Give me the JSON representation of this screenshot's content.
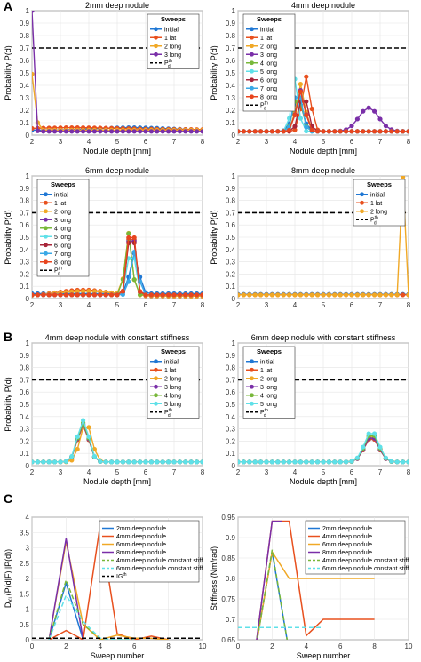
{
  "colors": {
    "initial": "#1f77d4",
    "lat1": "#e8501e",
    "long2": "#f0a826",
    "long3": "#7a2fa8",
    "long4": "#78b83a",
    "long5": "#5fe0e8",
    "long6": "#a8253a",
    "long7": "#3aa8e6",
    "long8": "#e8451e",
    "threshold": "#000000",
    "axis": "#555555",
    "grid": "#e5e5e5"
  },
  "sections": [
    {
      "letter": "A"
    },
    {
      "letter": "B"
    },
    {
      "letter": "C"
    }
  ],
  "chart_data": [
    {
      "type": "line",
      "title": "2mm deep nodule",
      "xlabel": "Nodule depth [mm]",
      "ylabel": "Probability P(d)",
      "xlim": [
        2,
        8
      ],
      "ylim": [
        0,
        1
      ],
      "xticks": [
        "2",
        "3",
        "4",
        "5",
        "6",
        "7",
        "8"
      ],
      "yticks": [
        "0",
        "0.1",
        "0.2",
        "0.3",
        "0.4",
        "0.5",
        "0.6",
        "0.7",
        "0.8",
        "0.9",
        "1"
      ],
      "legend_title": "Sweeps",
      "legend_position": "top-right",
      "threshold": {
        "y": 0.7,
        "label": "P",
        "sup": "th",
        "sub": "d"
      },
      "series": [
        {
          "name": "initial",
          "color_key": "initial",
          "profile": [
            {
              "c": 5.5,
              "h": 0.02,
              "w": 1.2
            }
          ],
          "base": 0.04
        },
        {
          "name": "1 lat",
          "color_key": "lat1",
          "profile": [
            {
              "c": 3.5,
              "h": 0.015,
              "w": 1.5
            }
          ],
          "base": 0.045
        },
        {
          "name": "2 long",
          "color_key": "long2",
          "profile": [
            {
              "c": 2.0,
              "h": 0.45,
              "w": 0.1
            }
          ],
          "base": 0.04
        },
        {
          "name": "3 long",
          "color_key": "long3",
          "profile": [
            {
              "c": 2.0,
              "h": 0.97,
              "w": 0.06
            }
          ],
          "base": 0.03
        }
      ]
    },
    {
      "type": "line",
      "title": "4mm deep nodule",
      "xlabel": "Nodule depth [mm]",
      "ylabel": "Probability P(d)",
      "xlim": [
        2,
        8
      ],
      "ylim": [
        0,
        1
      ],
      "xticks": [
        "2",
        "3",
        "4",
        "5",
        "6",
        "7",
        "8"
      ],
      "yticks": [
        "0",
        "0.1",
        "0.2",
        "0.3",
        "0.4",
        "0.5",
        "0.6",
        "0.7",
        "0.8",
        "0.9",
        "1"
      ],
      "legend_title": "Sweeps",
      "legend_position": "top-left",
      "threshold": {
        "y": 0.7,
        "label": "P",
        "sup": "th",
        "sub": "d"
      },
      "series": [
        {
          "name": "initial",
          "color_key": "initial",
          "profile": [
            {
              "c": 4.1,
              "h": 0.25,
              "w": 0.18
            }
          ],
          "base": 0.03
        },
        {
          "name": "1 lat",
          "color_key": "lat1",
          "profile": [
            {
              "c": 4.4,
              "h": 0.44,
              "w": 0.15
            }
          ],
          "base": 0.03
        },
        {
          "name": "2 long",
          "color_key": "long2",
          "profile": [
            {
              "c": 4.2,
              "h": 0.38,
              "w": 0.15
            }
          ],
          "base": 0.03
        },
        {
          "name": "3 long",
          "color_key": "long3",
          "profile": [
            {
              "c": 4.2,
              "h": 0.33,
              "w": 0.15
            },
            {
              "c": 6.6,
              "h": 0.19,
              "w": 0.35
            }
          ],
          "base": 0.03
        },
        {
          "name": "4 long",
          "color_key": "long4",
          "profile": [
            {
              "c": 4.1,
              "h": 0.3,
              "w": 0.15
            }
          ],
          "base": 0.03
        },
        {
          "name": "5 long",
          "color_key": "long5",
          "profile": [
            {
              "c": 4.0,
              "h": 0.42,
              "w": 0.12
            }
          ],
          "base": 0.03
        },
        {
          "name": "6 long",
          "color_key": "long6",
          "profile": [
            {
              "c": 4.3,
              "h": 0.3,
              "w": 0.15
            }
          ],
          "base": 0.03
        },
        {
          "name": "7 long",
          "color_key": "long7",
          "profile": [
            {
              "c": 4.1,
              "h": 0.35,
              "w": 0.14
            }
          ],
          "base": 0.03
        },
        {
          "name": "8 long",
          "color_key": "long8",
          "profile": [
            {
              "c": 4.2,
              "h": 0.32,
              "w": 0.15
            }
          ],
          "base": 0.03
        }
      ]
    },
    {
      "type": "line",
      "title": "6mm deep nodule",
      "xlabel": "",
      "ylabel": "Probability P(d)",
      "xlim": [
        2,
        8
      ],
      "ylim": [
        0,
        1
      ],
      "xticks": [
        "2",
        "3",
        "4",
        "5",
        "6",
        "7",
        "8"
      ],
      "yticks": [
        "0",
        "0.1",
        "0.2",
        "0.3",
        "0.4",
        "0.5",
        "0.6",
        "0.7",
        "0.8",
        "0.9",
        "1"
      ],
      "legend_title": "Sweeps",
      "legend_position": "top-left",
      "threshold": {
        "y": 0.7,
        "label": "P",
        "sup": "th",
        "sub": "d"
      },
      "series": [
        {
          "name": "initial",
          "color_key": "initial",
          "profile": [
            {
              "c": 5.6,
              "h": 0.33,
              "w": 0.15
            }
          ],
          "base": 0.04
        },
        {
          "name": "1 lat",
          "color_key": "lat1",
          "profile": [
            {
              "c": 5.5,
              "h": 0.64,
              "w": 0.12
            },
            {
              "c": 3.8,
              "h": 0.05,
              "w": 0.9
            }
          ],
          "base": 0.02
        },
        {
          "name": "2 long",
          "color_key": "long2",
          "profile": [
            {
              "c": 5.4,
              "h": 0.5,
              "w": 0.12
            },
            {
              "c": 3.9,
              "h": 0.04,
              "w": 1.0
            }
          ],
          "base": 0.02
        },
        {
          "name": "3 long",
          "color_key": "long3",
          "profile": [
            {
              "c": 5.5,
              "h": 0.62,
              "w": 0.12
            }
          ],
          "base": 0.03
        },
        {
          "name": "4 long",
          "color_key": "long4",
          "profile": [
            {
              "c": 5.4,
              "h": 0.5,
              "w": 0.12
            }
          ],
          "base": 0.03
        },
        {
          "name": "5 long",
          "color_key": "long5",
          "profile": [
            {
              "c": 5.5,
              "h": 0.4,
              "w": 0.13
            }
          ],
          "base": 0.03
        },
        {
          "name": "6 long",
          "color_key": "long6",
          "profile": [
            {
              "c": 5.5,
              "h": 0.6,
              "w": 0.12
            }
          ],
          "base": 0.03
        },
        {
          "name": "7 long",
          "color_key": "long7",
          "profile": [
            {
              "c": 5.6,
              "h": 0.35,
              "w": 0.13
            }
          ],
          "base": 0.03
        },
        {
          "name": "8 long",
          "color_key": "long8",
          "profile": [
            {
              "c": 5.5,
              "h": 0.66,
              "w": 0.12
            }
          ],
          "base": 0.03
        }
      ]
    },
    {
      "type": "line",
      "title": "8mm deep nodule",
      "xlabel": "",
      "ylabel": "Probability P(d)",
      "xlim": [
        2,
        8
      ],
      "ylim": [
        0,
        1
      ],
      "xticks": [
        "2",
        "3",
        "4",
        "5",
        "6",
        "7",
        "8"
      ],
      "yticks": [
        "0",
        "0.1",
        "0.2",
        "0.3",
        "0.4",
        "0.5",
        "0.6",
        "0.7",
        "0.8",
        "0.9",
        "1"
      ],
      "legend_title": "Sweeps",
      "legend_position": "top-right",
      "threshold": {
        "y": 0.7,
        "label": "P",
        "sup": "th",
        "sub": "d"
      },
      "series": [
        {
          "name": "initial",
          "color_key": "initial",
          "profile": [],
          "base": 0.035
        },
        {
          "name": "1 lat",
          "color_key": "lat1",
          "profile": [],
          "base": 0.03
        },
        {
          "name": "2 long",
          "color_key": "long2",
          "profile": [
            {
              "c": 7.8,
              "h": 0.96,
              "w": 0.05
            }
          ],
          "base": 0.03
        }
      ]
    },
    {
      "type": "line",
      "title": "4mm deep nodule with constant stiffness",
      "xlabel": "Nodule depth [mm]",
      "ylabel": "Probability P(d)",
      "xlim": [
        2,
        8
      ],
      "ylim": [
        0,
        1
      ],
      "xticks": [
        "2",
        "3",
        "4",
        "5",
        "6",
        "7",
        "8"
      ],
      "yticks": [
        "0",
        "0.1",
        "0.2",
        "0.3",
        "0.4",
        "0.5",
        "0.6",
        "0.7",
        "0.8",
        "0.9",
        "1"
      ],
      "legend_title": "Sweeps",
      "legend_position": "top-right",
      "threshold": {
        "y": 0.7,
        "label": "P",
        "sup": "th",
        "sub": "d"
      },
      "series": [
        {
          "name": "initial",
          "color_key": "initial",
          "profile": [
            {
              "c": 3.8,
              "h": 0.3,
              "w": 0.2
            }
          ],
          "base": 0.03
        },
        {
          "name": "1 lat",
          "color_key": "lat1",
          "profile": [
            {
              "c": 3.8,
              "h": 0.3,
              "w": 0.2
            }
          ],
          "base": 0.03
        },
        {
          "name": "2 long",
          "color_key": "long2",
          "profile": [
            {
              "c": 3.9,
              "h": 0.32,
              "w": 0.2
            }
          ],
          "base": 0.03
        },
        {
          "name": "3 long",
          "color_key": "long3",
          "profile": [
            {
              "c": 3.8,
              "h": 0.31,
              "w": 0.2
            }
          ],
          "base": 0.03
        },
        {
          "name": "4 long",
          "color_key": "long4",
          "profile": [
            {
              "c": 3.8,
              "h": 0.32,
              "w": 0.2
            }
          ],
          "base": 0.03
        },
        {
          "name": "5 long",
          "color_key": "long5",
          "profile": [
            {
              "c": 3.8,
              "h": 0.34,
              "w": 0.2
            }
          ],
          "base": 0.03
        }
      ]
    },
    {
      "type": "line",
      "title": "6mm deep nodule with constant stiffness",
      "xlabel": "Nodule depth [mm]",
      "ylabel": "",
      "xlim": [
        2,
        8
      ],
      "ylim": [
        0,
        1
      ],
      "xticks": [
        "2",
        "3",
        "4",
        "5",
        "6",
        "7",
        "8"
      ],
      "yticks": [
        "0",
        "0.1",
        "0.2",
        "0.3",
        "0.4",
        "0.5",
        "0.6",
        "0.7",
        "0.8",
        "0.9",
        "1"
      ],
      "legend_title": "Sweeps",
      "legend_position": "top-left",
      "threshold": {
        "y": 0.7,
        "label": "P",
        "sup": "th",
        "sub": "d"
      },
      "series": [
        {
          "name": "initial",
          "color_key": "initial",
          "profile": [
            {
              "c": 6.7,
              "h": 0.2,
              "w": 0.25
            }
          ],
          "base": 0.03
        },
        {
          "name": "1 lat",
          "color_key": "lat1",
          "profile": [
            {
              "c": 6.7,
              "h": 0.2,
              "w": 0.25
            }
          ],
          "base": 0.03
        },
        {
          "name": "2 long",
          "color_key": "long2",
          "profile": [
            {
              "c": 6.7,
              "h": 0.22,
              "w": 0.25
            }
          ],
          "base": 0.03
        },
        {
          "name": "3 long",
          "color_key": "long3",
          "profile": [
            {
              "c": 6.7,
              "h": 0.21,
              "w": 0.25
            }
          ],
          "base": 0.03
        },
        {
          "name": "4 long",
          "color_key": "long4",
          "profile": [
            {
              "c": 6.7,
              "h": 0.23,
              "w": 0.25
            }
          ],
          "base": 0.03
        },
        {
          "name": "5 long",
          "color_key": "long5",
          "profile": [
            {
              "c": 6.7,
              "h": 0.25,
              "w": 0.25
            }
          ],
          "base": 0.03
        }
      ]
    },
    {
      "type": "line",
      "title": "",
      "xlabel": "Sweep number",
      "ylabel_main": "D",
      "ylabel_sub": "KL",
      "ylabel_rest": "(P(d|F)||P(d))",
      "xlim": [
        0,
        10
      ],
      "ylim": [
        0,
        4
      ],
      "xticks": [
        "0",
        "2",
        "4",
        "6",
        "8",
        "10"
      ],
      "yticks": [
        "0",
        "0.5",
        "1",
        "1.5",
        "2",
        "2.5",
        "3",
        "3.5",
        "4"
      ],
      "legend_position": "top-right",
      "legend_entries": [
        "2mm deep nodule",
        "4mm deep nodule",
        "6mm deep nodule",
        "8mm deep nodule",
        "4mm deep nodule constant stiff",
        "6mm deep nodule constant stiff",
        "IG"
      ],
      "ig_sup": "th",
      "series": [
        {
          "name": "2mm deep nodule",
          "color_key": "initial",
          "dash": false,
          "x": [
            1,
            2,
            3
          ],
          "y": [
            0,
            1.85,
            0
          ]
        },
        {
          "name": "4mm deep nodule",
          "color_key": "lat1",
          "dash": false,
          "x": [
            1,
            2,
            3,
            4,
            5,
            6,
            7,
            8
          ],
          "y": [
            0,
            0.3,
            0,
            3.75,
            0.2,
            0,
            0.12,
            0
          ]
        },
        {
          "name": "6mm deep nodule",
          "color_key": "long2",
          "dash": false,
          "x": [
            1,
            2,
            3,
            4,
            5,
            6,
            7,
            8
          ],
          "y": [
            0,
            3.2,
            0.5,
            0,
            0.15,
            0.05,
            0.05,
            0
          ]
        },
        {
          "name": "8mm deep nodule",
          "color_key": "long3",
          "dash": false,
          "x": [
            1,
            2,
            3
          ],
          "y": [
            0,
            3.3,
            0
          ]
        },
        {
          "name": "4mm deep nodule constant stiff",
          "color_key": "long4",
          "dash": true,
          "x": [
            1,
            2,
            3,
            4,
            5,
            6
          ],
          "y": [
            0,
            1.95,
            0.5,
            0.05,
            0,
            0
          ]
        },
        {
          "name": "6mm deep nodule constant stiff",
          "color_key": "long5",
          "dash": true,
          "x": [
            1,
            2,
            3,
            4,
            5,
            6
          ],
          "y": [
            0,
            1.45,
            0.6,
            0.05,
            0,
            0
          ]
        },
        {
          "name": "IG",
          "color_key": "threshold",
          "dash": true,
          "x": [
            0,
            10
          ],
          "y": [
            0.05,
            0.05
          ]
        }
      ]
    },
    {
      "type": "line",
      "title": "",
      "xlabel": "Sweep number",
      "ylabel": "Stiffness (Nm/rad)",
      "xlim": [
        0,
        10
      ],
      "ylim": [
        0.65,
        0.95
      ],
      "xticks": [
        "0",
        "2",
        "4",
        "6",
        "8",
        "10"
      ],
      "yticks": [
        "0.65",
        "0.7",
        "0.75",
        "0.8",
        "0.85",
        "0.9",
        "0.95"
      ],
      "legend_position": "top-right",
      "series": [
        {
          "name": "2mm deep nodule",
          "color_key": "initial",
          "dash": false,
          "x": [
            1,
            2,
            3
          ],
          "y": [
            0.62,
            0.865,
            0.62
          ]
        },
        {
          "name": "4mm deep nodule",
          "color_key": "lat1",
          "dash": false,
          "x": [
            1,
            2,
            3,
            4,
            4.5,
            5,
            6,
            7,
            8
          ],
          "y": [
            0.62,
            0.94,
            0.94,
            0.66,
            0.68,
            0.7,
            0.7,
            0.7,
            0.7
          ]
        },
        {
          "name": "4mm deep nodule",
          "color_key": "lat1",
          "dash": false,
          "x": [
            2,
            3
          ],
          "y": [
            0.94,
            0.94
          ]
        },
        {
          "name": "6mm deep nodule",
          "color_key": "long2",
          "dash": false,
          "x": [
            1,
            2,
            3,
            4,
            5,
            6,
            7,
            8
          ],
          "y": [
            0.62,
            0.865,
            0.8,
            0.8,
            0.8,
            0.8,
            0.8,
            0.8
          ]
        },
        {
          "name": "8mm deep nodule",
          "color_key": "long3",
          "dash": false,
          "x": [
            1,
            2,
            2.6
          ],
          "y": [
            0.62,
            0.94,
            0.94
          ]
        },
        {
          "name": "4mm deep nodule constant stiff",
          "color_key": "long4",
          "dash": true,
          "x": [
            1,
            2,
            3
          ],
          "y": [
            0.62,
            0.87,
            0.62
          ]
        },
        {
          "name": "6mm deep nodule constant stiff",
          "color_key": "long5",
          "dash": true,
          "x": [
            0,
            1,
            2,
            3,
            4,
            5
          ],
          "y": [
            0.68,
            0.68,
            0.68,
            0.68,
            0.68,
            0.68
          ]
        }
      ]
    }
  ]
}
